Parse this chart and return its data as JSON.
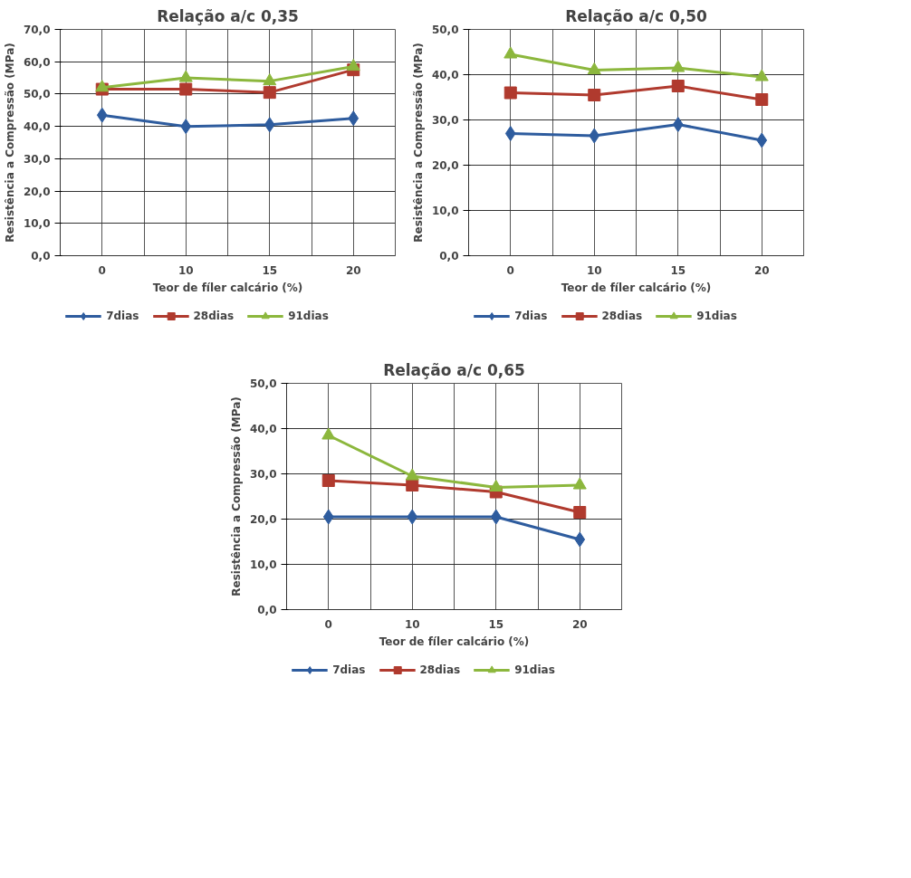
{
  "chart_data": [
    {
      "type": "line",
      "title": "Relação a/c 0,35",
      "xlabel": "Teor de fíler calcário (%)",
      "ylabel": "Resistência a Compressão (MPa)",
      "categories": [
        "0",
        "10",
        "15",
        "20"
      ],
      "ylim": [
        0,
        70
      ],
      "yticks": [
        {
          "value": 0,
          "label": "0,0"
        },
        {
          "value": 10,
          "label": "10,0"
        },
        {
          "value": 20,
          "label": "20,0"
        },
        {
          "value": 30,
          "label": "30,0"
        },
        {
          "value": 40,
          "label": "40,0"
        },
        {
          "value": 50,
          "label": "50,0"
        },
        {
          "value": 60,
          "label": "60,0"
        },
        {
          "value": 70,
          "label": "70,0"
        }
      ],
      "grid": true,
      "legend": "bottom",
      "series": [
        {
          "name": "7dias",
          "color": "#2e5c9e",
          "marker": "diamond",
          "values": [
            43.5,
            40,
            40.5,
            42.5
          ]
        },
        {
          "name": "28dias",
          "color": "#b03a2e",
          "marker": "square",
          "values": [
            51.5,
            51.5,
            50.5,
            57.5
          ]
        },
        {
          "name": "91dias",
          "color": "#8cb73d",
          "marker": "triangle",
          "values": [
            52,
            55,
            54,
            58.5
          ]
        }
      ]
    },
    {
      "type": "line",
      "title": "Relação a/c 0,50",
      "xlabel": "Teor de fíler calcário (%)",
      "ylabel": "Resistência a Compressão (MPa)",
      "categories": [
        "0",
        "10",
        "15",
        "20"
      ],
      "ylim": [
        0,
        50
      ],
      "yticks": [
        {
          "value": 0,
          "label": "0,0"
        },
        {
          "value": 10,
          "label": "10,0"
        },
        {
          "value": 20,
          "label": "20,0"
        },
        {
          "value": 30,
          "label": "30,0"
        },
        {
          "value": 40,
          "label": "40,0"
        },
        {
          "value": 50,
          "label": "50,0"
        }
      ],
      "grid": true,
      "legend": "bottom",
      "series": [
        {
          "name": "7dias",
          "color": "#2e5c9e",
          "marker": "diamond",
          "values": [
            27,
            26.5,
            29,
            25.5
          ]
        },
        {
          "name": "28dias",
          "color": "#b03a2e",
          "marker": "square",
          "values": [
            36,
            35.5,
            37.5,
            34.5
          ]
        },
        {
          "name": "91dias",
          "color": "#8cb73d",
          "marker": "triangle",
          "values": [
            44.5,
            41,
            41.5,
            39.5
          ]
        }
      ]
    },
    {
      "type": "line",
      "title": "Relação a/c 0,65",
      "xlabel": "Teor de fíler calcário (%)",
      "ylabel": "Resistência a Compressão (MPa)",
      "categories": [
        "0",
        "10",
        "15",
        "20"
      ],
      "ylim": [
        0,
        50
      ],
      "yticks": [
        {
          "value": 0,
          "label": "0,0"
        },
        {
          "value": 10,
          "label": "10,0"
        },
        {
          "value": 20,
          "label": "20,0"
        },
        {
          "value": 30,
          "label": "30,0"
        },
        {
          "value": 40,
          "label": "40,0"
        },
        {
          "value": 50,
          "label": "50,0"
        }
      ],
      "grid": true,
      "legend": "bottom",
      "series": [
        {
          "name": "7dias",
          "color": "#2e5c9e",
          "marker": "diamond",
          "values": [
            20.5,
            20.5,
            20.5,
            15.5
          ]
        },
        {
          "name": "28dias",
          "color": "#b03a2e",
          "marker": "square",
          "values": [
            28.5,
            27.5,
            26,
            21.5
          ]
        },
        {
          "name": "91dias",
          "color": "#8cb73d",
          "marker": "triangle",
          "values": [
            38.5,
            29.5,
            27,
            27.5
          ]
        }
      ]
    }
  ]
}
